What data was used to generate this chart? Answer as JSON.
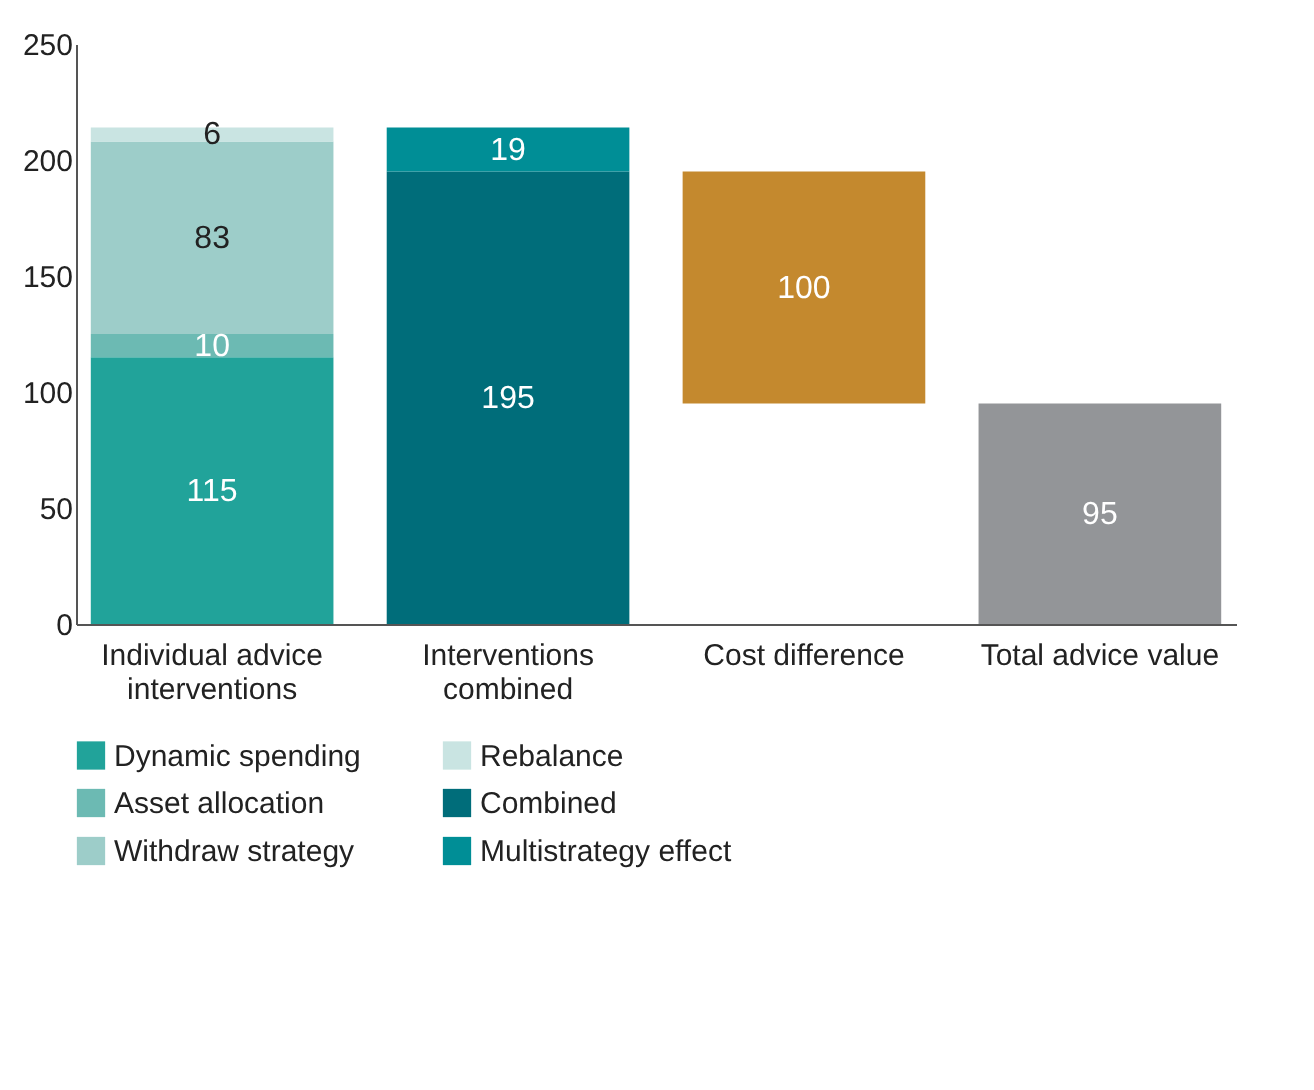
{
  "chart_data": {
    "type": "bar",
    "stacked": true,
    "categories": [
      "Individual advice interventions",
      "Interventions combined",
      "Cost difference",
      "Total advice value"
    ],
    "series": [
      {
        "name": "Dynamic spending",
        "color": "#21a39a",
        "values": [
          115,
          null,
          null,
          null
        ]
      },
      {
        "name": "Asset allocation",
        "color": "#6cbab3",
        "values": [
          10,
          null,
          null,
          null
        ]
      },
      {
        "name": "Withdraw strategy",
        "color": "#9dcdc9",
        "values": [
          83,
          null,
          null,
          null
        ]
      },
      {
        "name": "Rebalance",
        "color": "#c9e4e2",
        "values": [
          6,
          null,
          null,
          null
        ]
      },
      {
        "name": "Combined",
        "color": "#006d7a",
        "values": [
          null,
          195,
          null,
          null
        ]
      },
      {
        "name": "Multistrategy effect",
        "color": "#008e96",
        "values": [
          null,
          19,
          null,
          null
        ]
      },
      {
        "color": "#c4892e",
        "values": [
          null,
          null,
          100,
          null
        ],
        "base": [
          null,
          null,
          95,
          null
        ]
      },
      {
        "color": "#939598",
        "values": [
          null,
          null,
          null,
          95
        ]
      }
    ],
    "ylim": [
      0,
      250
    ],
    "yticks": [
      0,
      50,
      100,
      150,
      200,
      250
    ],
    "grid": false,
    "data_labels": true,
    "legend": "bottom left"
  }
}
